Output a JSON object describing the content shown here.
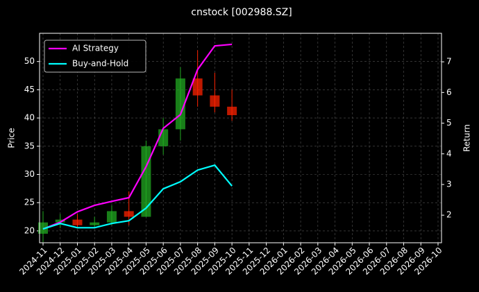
{
  "chart_data": {
    "type": "candlestick",
    "title": "cnstock [002988.SZ]",
    "ylabel": "Price",
    "y2label": "Return",
    "x": [
      "2024-11",
      "2024-12",
      "2025-01",
      "2025-02",
      "2025-03",
      "2025-04",
      "2025-05",
      "2025-06",
      "2025-07",
      "2025-08",
      "2025-09",
      "2025-10"
    ],
    "candles": {
      "open": [
        19.5,
        21.5,
        22,
        21,
        21.5,
        23.5,
        22.5,
        35,
        38,
        47,
        44,
        42
      ],
      "high": [
        23.5,
        23,
        23,
        22.5,
        24.5,
        27,
        36,
        40,
        49,
        52,
        48,
        45
      ],
      "low": [
        18,
        20.5,
        20.5,
        20.5,
        21,
        21,
        22.5,
        33.5,
        36,
        42,
        41,
        39.5
      ],
      "close": [
        21.5,
        22,
        21,
        21.5,
        23.5,
        22.5,
        35,
        38,
        47,
        44,
        42,
        40.5
      ],
      "up_color": "#22aa22",
      "down_color": "#ff2200"
    },
    "series": [
      {
        "name": "AI Strategy",
        "color": "#ff00ff",
        "axis": "y2",
        "values": [
          1.55,
          1.77,
          2.11,
          2.32,
          2.45,
          2.57,
          3.58,
          4.83,
          5.28,
          6.75,
          7.52,
          7.57
        ]
      },
      {
        "name": "Buy-and-Hold",
        "color": "#00ffff",
        "axis": "y2",
        "values": [
          1.55,
          1.73,
          1.59,
          1.59,
          1.73,
          1.82,
          2.23,
          2.86,
          3.09,
          3.47,
          3.63,
          2.95
        ]
      }
    ],
    "xlim": [
      "2024-11",
      "2026-10"
    ],
    "xticks": [
      "2024-11",
      "2024-12",
      "2025-01",
      "2025-02",
      "2025-03",
      "2025-04",
      "2025-05",
      "2025-06",
      "2025-07",
      "2025-08",
      "2025-09",
      "2025-10",
      "2025-11",
      "2025-12",
      "2026-01",
      "2026-02",
      "2026-03",
      "2026-04",
      "2026-05",
      "2026-06",
      "2026-07",
      "2026-08",
      "2026-09",
      "2026-10"
    ],
    "ylim": [
      17.9,
      55.0
    ],
    "yticks": [
      20,
      25,
      30,
      35,
      40,
      45,
      50
    ],
    "y2lim": [
      1.1,
      7.93
    ],
    "y2ticks": [
      2,
      3,
      4,
      5,
      6,
      7
    ],
    "grid": true,
    "legend": "upper left"
  }
}
